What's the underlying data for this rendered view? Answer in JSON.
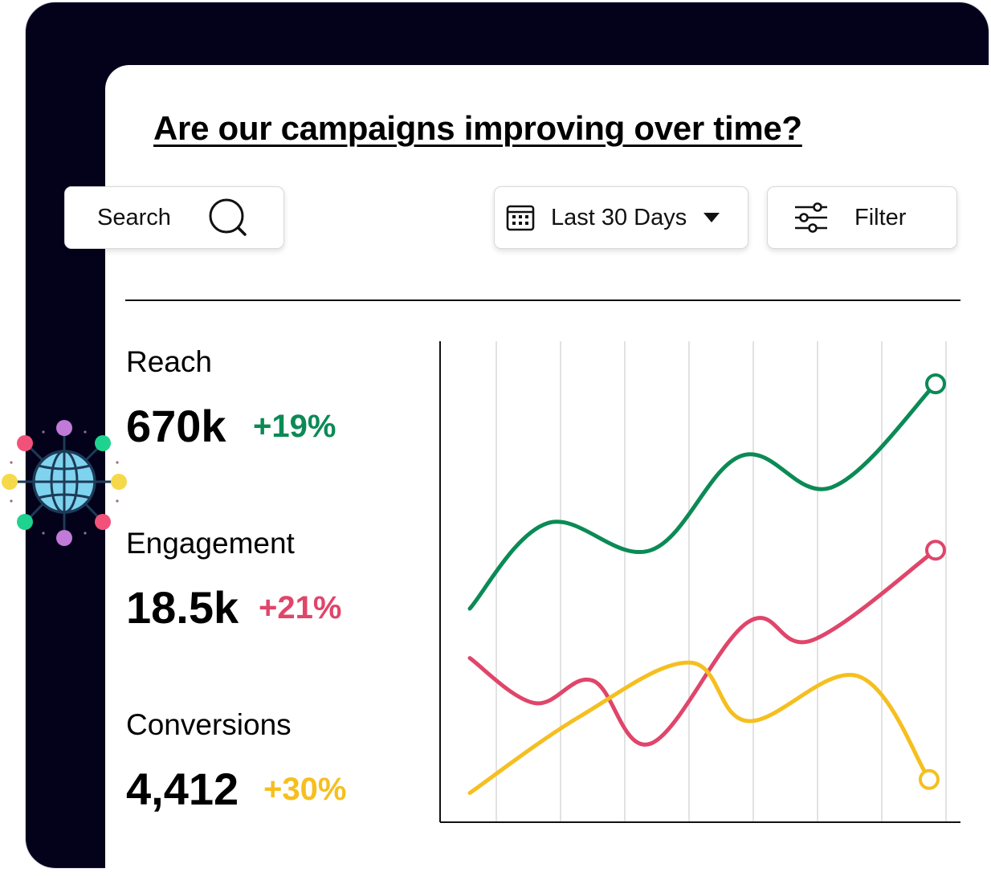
{
  "title": "Are our campaigns improving over time?",
  "search": {
    "label": "Search",
    "icon": "search-icon"
  },
  "date_range": {
    "label": "Last 30 Days",
    "icon": "calendar-icon"
  },
  "filter": {
    "label": "Filter",
    "icon": "sliders-icon"
  },
  "metrics": [
    {
      "label": "Reach",
      "value": "670k",
      "delta": "+19%",
      "color": "#0b8a55"
    },
    {
      "label": "Engagement",
      "value": "18.5k",
      "delta": "+21%",
      "color": "#e0456a"
    },
    {
      "label": "Conversions",
      "value": "4,412",
      "delta": "+30%",
      "color": "#f5bf1f"
    }
  ],
  "colors": {
    "frame": "#03021a",
    "grid": "#d9d9d9",
    "axis": "#111111"
  },
  "chart_data": {
    "type": "line",
    "x": [
      0,
      1,
      2,
      3,
      4,
      5,
      6,
      7
    ],
    "ylim": [
      0,
      100
    ],
    "grid": {
      "vertical": true,
      "horizontal": false
    },
    "series": [
      {
        "color": "#0b8a55",
        "values": [
          45,
          64,
          58,
          79,
          72,
          95
        ],
        "x": [
          0,
          1.2,
          2.8,
          4.2,
          5.6,
          7.2
        ]
      },
      {
        "color": "#e0456a",
        "values": [
          34,
          24,
          29,
          15,
          42,
          38,
          58
        ],
        "x": [
          0,
          1.0,
          1.9,
          2.8,
          4.3,
          5.3,
          7.2
        ]
      },
      {
        "color": "#f5bf1f",
        "values": [
          4,
          21,
          33,
          20,
          30,
          7
        ],
        "x": [
          0,
          1.7,
          3.4,
          4.3,
          6.0,
          7.1
        ]
      }
    ]
  }
}
